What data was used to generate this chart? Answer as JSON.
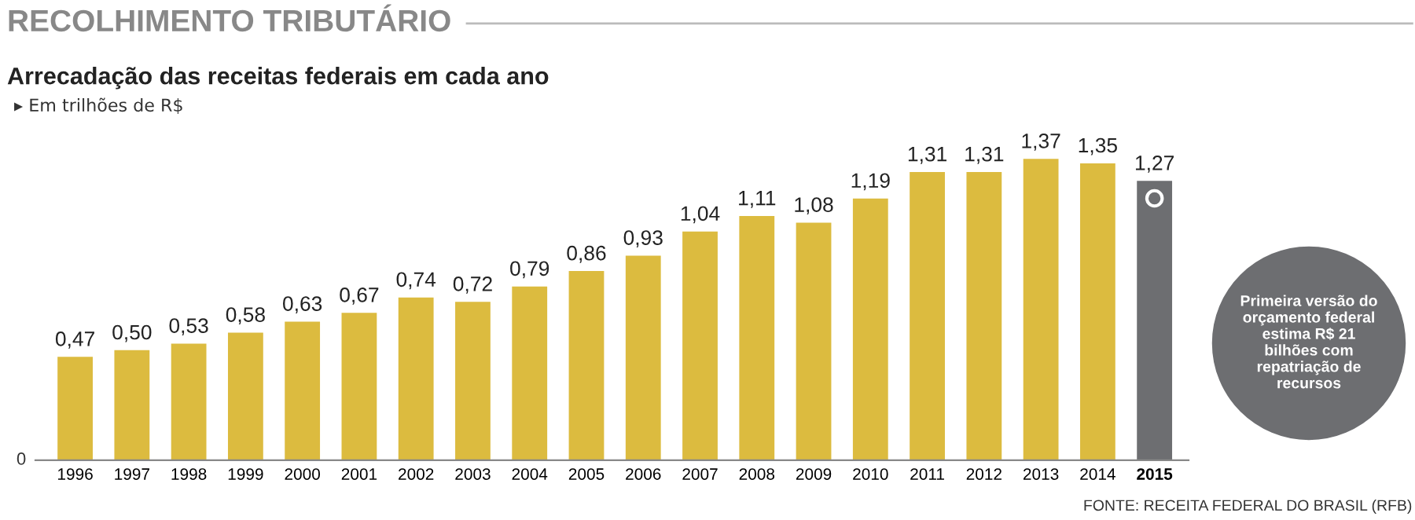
{
  "chart_data": {
    "type": "bar",
    "title": "RECOLHIMENTO TRIBUTÁRIO",
    "subtitle": "Arrecadação das receitas federais em cada ano",
    "ylabel": "▸ Em trilhões de R$",
    "categories": [
      "1996",
      "1997",
      "1998",
      "1999",
      "2000",
      "2001",
      "2002",
      "2003",
      "2004",
      "2005",
      "2006",
      "2007",
      "2008",
      "2009",
      "2010",
      "2011",
      "2012",
      "2013",
      "2014",
      "2015"
    ],
    "values": [
      0.47,
      0.5,
      0.53,
      0.58,
      0.63,
      0.67,
      0.74,
      0.72,
      0.79,
      0.86,
      0.93,
      1.04,
      1.11,
      1.08,
      1.19,
      1.31,
      1.31,
      1.37,
      1.35,
      1.27
    ],
    "value_labels": [
      "0,47",
      "0,50",
      "0,53",
      "0,58",
      "0,63",
      "0,67",
      "0,74",
      "0,72",
      "0,79",
      "0,86",
      "0,93",
      "1,04",
      "1,11",
      "1,08",
      "1,19",
      "1,31",
      "1,31",
      "1,37",
      "1,35",
      "1,27"
    ],
    "colors": [
      "#dcbb3f",
      "#dcbb3f",
      "#dcbb3f",
      "#dcbb3f",
      "#dcbb3f",
      "#dcbb3f",
      "#dcbb3f",
      "#dcbb3f",
      "#dcbb3f",
      "#dcbb3f",
      "#dcbb3f",
      "#dcbb3f",
      "#dcbb3f",
      "#dcbb3f",
      "#dcbb3f",
      "#dcbb3f",
      "#dcbb3f",
      "#dcbb3f",
      "#dcbb3f",
      "#6d6e71"
    ],
    "grid": false,
    "legend": false,
    "annotations": [
      "Primeira versão do orçamento federal estima R$ 21 bilhões com repatriação de recursos",
      "FONTE: RECEITA FEDERAL DO BRASIL (RFB)",
      "0"
    ]
  }
}
